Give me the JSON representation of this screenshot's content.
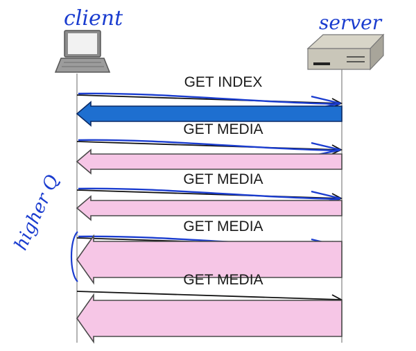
{
  "annotations": {
    "client_handwritten": "client",
    "server_handwritten": "server",
    "side_note_handwritten": "higher Q"
  },
  "messages": [
    {
      "label": "GET INDEX",
      "response_size": "small",
      "response_color": "#1e6fd0"
    },
    {
      "label": "GET MEDIA",
      "response_size": "small",
      "response_color": "#f6c6e6"
    },
    {
      "label": "GET MEDIA",
      "response_size": "small",
      "response_color": "#f6c6e6"
    },
    {
      "label": "GET MEDIA",
      "response_size": "large",
      "response_color": "#f6c6e6"
    },
    {
      "label": "GET MEDIA",
      "response_size": "large",
      "response_color": "#f6c6e6"
    }
  ],
  "colors": {
    "ink": "#1a3ccf",
    "lifeline": "#9a9a9a",
    "request_arrow": "#111111",
    "response_outline": "#4a4a4a"
  },
  "icons": {
    "client": "laptop-icon",
    "server": "server-box-icon"
  }
}
